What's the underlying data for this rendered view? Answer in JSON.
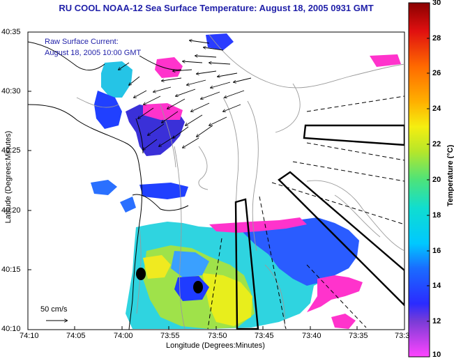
{
  "title": "RU COOL  NOAA-12  Sea Surface Temperature:  August 18, 2005 0931 GMT",
  "annotation": {
    "line1": "Raw Surface Current:",
    "line2": "August 18, 2005 10:00 GMT"
  },
  "axes": {
    "xlabel": "Longitude (Degrees:Minutes)",
    "ylabel": "Latitude (Degrees:Minutes)",
    "x_ticks": [
      "74:10",
      "74:05",
      "74:00",
      "73:55",
      "73:50",
      "73:45",
      "73:40",
      "73:35",
      "73:3"
    ],
    "y_ticks": [
      "40:35",
      "40:30",
      "40:25",
      "40:20",
      "40:15",
      "40:10"
    ]
  },
  "colorbar": {
    "label": "Temperature (°C)",
    "ticks": [
      "30",
      "28",
      "26",
      "24",
      "22",
      "20",
      "18",
      "16",
      "14",
      "12",
      "10"
    ],
    "range": [
      10,
      30
    ]
  },
  "scale_label": "50 cm/s",
  "colors": {
    "title": "#1f1fa8",
    "land_outline": "#000000",
    "bathymetry": "#9a9a9a",
    "cold": "#ff33cc",
    "warm": "#cc0000"
  }
}
